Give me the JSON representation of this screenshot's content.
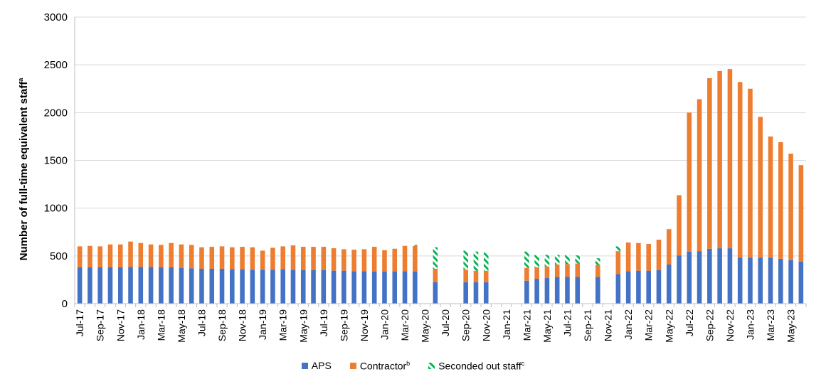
{
  "chart_data": {
    "type": "bar",
    "stacked": true,
    "ylabel": "Number of full-time equivalent staff",
    "ylabel_sup": "a",
    "ylim": [
      0,
      3000
    ],
    "yticks": [
      "0",
      "500",
      "1000",
      "1500",
      "2000",
      "2500",
      "3000"
    ],
    "grid": true,
    "legend_position": "bottom",
    "months": [
      "Jul-17",
      "Aug-17",
      "Sep-17",
      "Oct-17",
      "Nov-17",
      "Dec-17",
      "Jan-18",
      "Feb-18",
      "Mar-18",
      "Apr-18",
      "May-18",
      "Jun-18",
      "Jul-18",
      "Aug-18",
      "Sep-18",
      "Oct-18",
      "Nov-18",
      "Dec-18",
      "Jan-19",
      "Feb-19",
      "Mar-19",
      "Apr-19",
      "May-19",
      "Jun-19",
      "Jul-19",
      "Aug-19",
      "Sep-19",
      "Oct-19",
      "Nov-19",
      "Dec-19",
      "Jan-20",
      "Feb-20",
      "Mar-20",
      "Apr-20",
      "May-20",
      "Jun-20",
      "Jul-20",
      "Aug-20",
      "Sep-20",
      "Oct-20",
      "Nov-20",
      "Dec-20",
      "Jan-21",
      "Feb-21",
      "Mar-21",
      "Apr-21",
      "May-21",
      "Jun-21",
      "Jul-21",
      "Aug-21",
      "Sep-21",
      "Oct-21",
      "Nov-21",
      "Dec-21",
      "Jan-22",
      "Feb-22",
      "Mar-22",
      "Apr-22",
      "May-22",
      "Jun-22",
      "Jul-22",
      "Aug-22",
      "Sep-22",
      "Oct-22",
      "Nov-22",
      "Dec-22",
      "Jan-23",
      "Feb-23",
      "Mar-23",
      "Apr-23",
      "May-23",
      "Jun-23"
    ],
    "x_tick_labels": [
      "Jul-17",
      "Sep-17",
      "Nov-17",
      "Jan-18",
      "Mar-18",
      "May-18",
      "Jul-18",
      "Sep-18",
      "Nov-18",
      "Jan-19",
      "Mar-19",
      "May-19",
      "Jul-19",
      "Sep-19",
      "Nov-19",
      "Jan-20",
      "Mar-20",
      "May-20",
      "Jul-20",
      "Sep-20",
      "Nov-20",
      "Jan-21",
      "Mar-21",
      "May-21",
      "Jul-21",
      "Sep-21",
      "Nov-21",
      "Jan-22",
      "Mar-22",
      "May-22",
      "Jul-22",
      "Sep-22",
      "Nov-22",
      "Jan-23",
      "Mar-23",
      "May-23"
    ],
    "series": [
      {
        "name": "APS",
        "color": "#4472C4",
        "values": [
          380,
          380,
          380,
          380,
          380,
          385,
          385,
          385,
          380,
          380,
          375,
          370,
          365,
          365,
          365,
          360,
          360,
          355,
          355,
          355,
          360,
          355,
          350,
          350,
          350,
          345,
          345,
          340,
          340,
          335,
          335,
          335,
          340,
          335,
          null,
          225,
          null,
          null,
          225,
          225,
          225,
          null,
          null,
          null,
          240,
          260,
          270,
          280,
          280,
          280,
          null,
          280,
          null,
          310,
          340,
          345,
          345,
          350,
          410,
          505,
          545,
          550,
          575,
          580,
          580,
          480,
          480,
          480,
          480,
          470,
          455,
          440
        ]
      },
      {
        "name": "Contractor",
        "sup": "b",
        "color": "#ED7D31",
        "values": [
          220,
          225,
          220,
          240,
          240,
          265,
          250,
          235,
          235,
          255,
          245,
          245,
          225,
          230,
          235,
          230,
          235,
          235,
          200,
          230,
          240,
          255,
          245,
          245,
          245,
          235,
          225,
          225,
          230,
          260,
          225,
          240,
          265,
          270,
          null,
          140,
          null,
          null,
          130,
          120,
          120,
          null,
          null,
          null,
          135,
          120,
          120,
          130,
          135,
          140,
          null,
          125,
          null,
          240,
          300,
          290,
          280,
          320,
          370,
          630,
          1455,
          1590,
          1785,
          1855,
          1875,
          1840,
          1770,
          1475,
          1270,
          1220,
          1115,
          1010
        ]
      },
      {
        "name": "Seconded out staff",
        "sup": "c",
        "color": "#00B050",
        "hatched": true,
        "values": [
          0,
          0,
          0,
          0,
          0,
          0,
          0,
          0,
          0,
          0,
          0,
          0,
          0,
          0,
          0,
          0,
          0,
          0,
          0,
          0,
          0,
          0,
          0,
          0,
          0,
          0,
          0,
          0,
          0,
          0,
          0,
          0,
          0,
          10,
          null,
          225,
          null,
          null,
          200,
          200,
          190,
          null,
          null,
          null,
          170,
          130,
          120,
          100,
          95,
          85,
          null,
          70,
          null,
          50,
          0,
          0,
          0,
          0,
          0,
          0,
          0,
          0,
          0,
          0,
          0,
          0,
          0,
          0,
          0,
          0,
          0,
          0
        ]
      }
    ]
  }
}
